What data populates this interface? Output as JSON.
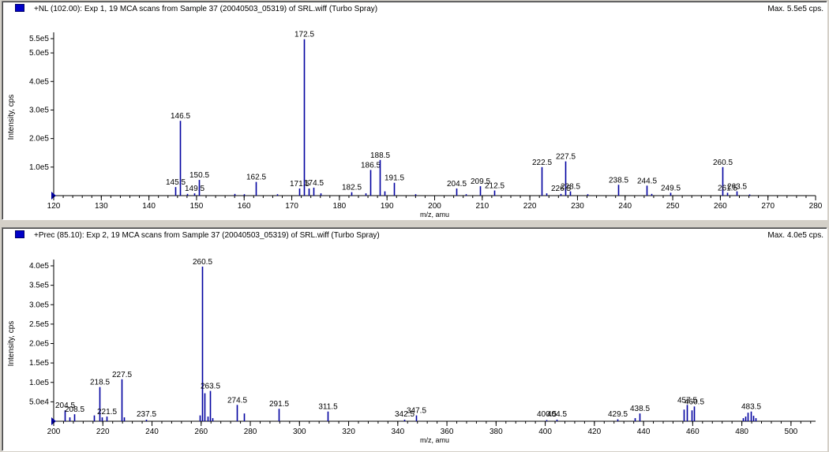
{
  "theme": {
    "peak_color": "#0000a0",
    "axis_color": "#000000",
    "marker_color": "#0000c8"
  },
  "panels": [
    {
      "title": "+NL (102.00): Exp 1, 19 MCA scans from Sample 37 (20040503_05319) of SRL.wiff (Turbo Spray)",
      "max_label": "Max. 5.5e5 cps."
    },
    {
      "title": "+Prec (85.10): Exp 2, 19 MCA scans from Sample 37 (20040503_05319) of SRL.wiff (Turbo Spray)",
      "max_label": "Max. 4.0e5 cps."
    }
  ],
  "chart_data": [
    {
      "type": "bar",
      "xlabel": "m/z, amu",
      "ylabel": "Intensity, cps",
      "xlim": [
        120,
        280
      ],
      "ylim": [
        0,
        550000
      ],
      "xticks": [
        120,
        130,
        140,
        150,
        160,
        170,
        180,
        190,
        200,
        210,
        220,
        230,
        240,
        250,
        260,
        270,
        280
      ],
      "yticks": [
        {
          "v": 100000,
          "label": "1.0e5"
        },
        {
          "v": 200000,
          "label": "2.0e5"
        },
        {
          "v": 300000,
          "label": "3.0e5"
        },
        {
          "v": 400000,
          "label": "4.0e5"
        },
        {
          "v": 500000,
          "label": "5.0e5"
        },
        {
          "v": 550000,
          "label": "5.5e5"
        }
      ],
      "peaks": [
        {
          "x": 145.5,
          "y": 30000,
          "label": "145.5"
        },
        {
          "x": 146.5,
          "y": 262000,
          "label": "146.5"
        },
        {
          "x": 148.0,
          "y": 6000
        },
        {
          "x": 149.5,
          "y": 8000,
          "label": "149.5"
        },
        {
          "x": 150.5,
          "y": 55000,
          "label": "150.5"
        },
        {
          "x": 158.0,
          "y": 6000
        },
        {
          "x": 160.0,
          "y": 5000
        },
        {
          "x": 162.5,
          "y": 48000,
          "label": "162.5"
        },
        {
          "x": 167.0,
          "y": 5000
        },
        {
          "x": 171.5,
          "y": 25000,
          "label": "171.5"
        },
        {
          "x": 172.5,
          "y": 548000,
          "label": "172.5"
        },
        {
          "x": 173.5,
          "y": 25000
        },
        {
          "x": 174.5,
          "y": 28000,
          "label": "174.5"
        },
        {
          "x": 176.0,
          "y": 8000
        },
        {
          "x": 182.5,
          "y": 12000,
          "label": "182.5"
        },
        {
          "x": 185.5,
          "y": 8000
        },
        {
          "x": 186.5,
          "y": 90000,
          "label": "186.5"
        },
        {
          "x": 188.5,
          "y": 125000,
          "label": "188.5"
        },
        {
          "x": 189.5,
          "y": 15000
        },
        {
          "x": 191.5,
          "y": 45000,
          "label": "191.5"
        },
        {
          "x": 196.0,
          "y": 5000
        },
        {
          "x": 204.5,
          "y": 25000,
          "label": "204.5"
        },
        {
          "x": 206.5,
          "y": 5000
        },
        {
          "x": 209.5,
          "y": 33000,
          "label": "209.5"
        },
        {
          "x": 212.5,
          "y": 18000,
          "label": "212.5"
        },
        {
          "x": 222.5,
          "y": 100000,
          "label": "222.5"
        },
        {
          "x": 223.5,
          "y": 8000
        },
        {
          "x": 226.5,
          "y": 6000,
          "label": "226.5"
        },
        {
          "x": 227.5,
          "y": 120000,
          "label": "227.5"
        },
        {
          "x": 228.5,
          "y": 15000,
          "label": "228.5"
        },
        {
          "x": 232.0,
          "y": 5000
        },
        {
          "x": 238.5,
          "y": 38000,
          "label": "238.5"
        },
        {
          "x": 244.5,
          "y": 35000,
          "label": "244.5"
        },
        {
          "x": 245.5,
          "y": 6000
        },
        {
          "x": 249.5,
          "y": 10000,
          "label": "249.5"
        },
        {
          "x": 260.5,
          "y": 100000,
          "label": "260.5"
        },
        {
          "x": 261.5,
          "y": 10000,
          "label": "261.5"
        },
        {
          "x": 263.5,
          "y": 15000,
          "label": "263.5"
        },
        {
          "x": 266.0,
          "y": 4000
        }
      ]
    },
    {
      "type": "bar",
      "xlabel": "m/z, amu",
      "ylabel": "Intensity, cps",
      "xlim": [
        200,
        510
      ],
      "ylim": [
        0,
        400000
      ],
      "xticks": [
        200,
        220,
        240,
        260,
        280,
        300,
        320,
        340,
        360,
        380,
        400,
        420,
        440,
        460,
        480,
        500
      ],
      "yticks": [
        {
          "v": 50000,
          "label": "5.0e4"
        },
        {
          "v": 100000,
          "label": "1.0e5"
        },
        {
          "v": 150000,
          "label": "1.5e5"
        },
        {
          "v": 200000,
          "label": "2.0e5"
        },
        {
          "v": 250000,
          "label": "2.5e5"
        },
        {
          "v": 300000,
          "label": "3.0e5"
        },
        {
          "v": 350000,
          "label": "3.5e5"
        },
        {
          "v": 400000,
          "label": "4.0e5"
        }
      ],
      "peaks": [
        {
          "x": 204.5,
          "y": 28000,
          "label": "204.5"
        },
        {
          "x": 206.5,
          "y": 10000
        },
        {
          "x": 208.5,
          "y": 18000,
          "label": "208.5"
        },
        {
          "x": 216.5,
          "y": 15000
        },
        {
          "x": 218.5,
          "y": 88000,
          "label": "218.5"
        },
        {
          "x": 219.5,
          "y": 10000
        },
        {
          "x": 221.5,
          "y": 12000,
          "label": "221.5"
        },
        {
          "x": 227.5,
          "y": 108000,
          "label": "227.5"
        },
        {
          "x": 228.5,
          "y": 10000
        },
        {
          "x": 237.5,
          "y": 4000,
          "label": "237.5"
        },
        {
          "x": 259.5,
          "y": 15000
        },
        {
          "x": 260.5,
          "y": 398000,
          "label": "260.5"
        },
        {
          "x": 261.5,
          "y": 72000
        },
        {
          "x": 262.5,
          "y": 12000
        },
        {
          "x": 263.5,
          "y": 78000,
          "label": "263.5"
        },
        {
          "x": 264.5,
          "y": 8000
        },
        {
          "x": 274.5,
          "y": 42000,
          "label": "274.5"
        },
        {
          "x": 277.5,
          "y": 20000
        },
        {
          "x": 291.5,
          "y": 32000,
          "label": "291.5"
        },
        {
          "x": 311.5,
          "y": 25000,
          "label": "311.5"
        },
        {
          "x": 342.5,
          "y": 4000,
          "label": "342.5"
        },
        {
          "x": 347.5,
          "y": 15000,
          "label": "347.5"
        },
        {
          "x": 400.5,
          "y": 3000,
          "label": "400.5"
        },
        {
          "x": 404.5,
          "y": 4000,
          "label": "404.5"
        },
        {
          "x": 429.5,
          "y": 5000,
          "label": "429.5"
        },
        {
          "x": 436.5,
          "y": 8000
        },
        {
          "x": 438.5,
          "y": 20000,
          "label": "438.5"
        },
        {
          "x": 456.5,
          "y": 30000
        },
        {
          "x": 457.5,
          "y": 42000,
          "label": "457.5"
        },
        {
          "x": 459.5,
          "y": 28000
        },
        {
          "x": 460.5,
          "y": 38000,
          "label": "460.5"
        },
        {
          "x": 480.5,
          "y": 8000
        },
        {
          "x": 481.5,
          "y": 12000
        },
        {
          "x": 482.5,
          "y": 22000
        },
        {
          "x": 483.5,
          "y": 25000,
          "label": "483.5"
        },
        {
          "x": 484.5,
          "y": 14000
        },
        {
          "x": 485.5,
          "y": 8000
        }
      ]
    }
  ]
}
